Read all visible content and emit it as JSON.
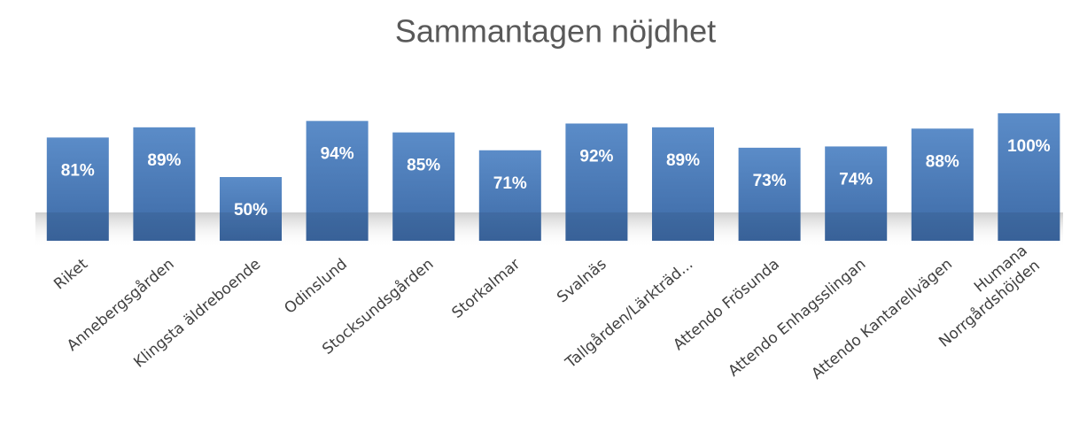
{
  "chart_data": {
    "type": "bar",
    "title": "Sammantagen nöjdhet",
    "categories": [
      "Riket",
      "Annebergsgården",
      "Klingsta äldreboende",
      "Odinslund",
      "Stocksundsgården",
      "Storkalmar",
      "Svalnäs",
      "Tallgården/Lärkträd...",
      "Attendo Frösunda",
      "Attendo Enhagsslingan",
      "Attendo Kantarellvägen",
      "Humana\nNorrgårdshöjden"
    ],
    "values": [
      81,
      89,
      50,
      94,
      85,
      71,
      92,
      89,
      73,
      74,
      88,
      100
    ],
    "value_labels": [
      "81%",
      "89%",
      "50%",
      "94%",
      "85%",
      "71%",
      "92%",
      "89%",
      "73%",
      "74%",
      "88%",
      "100%"
    ],
    "color": "#4f81bd"
  }
}
